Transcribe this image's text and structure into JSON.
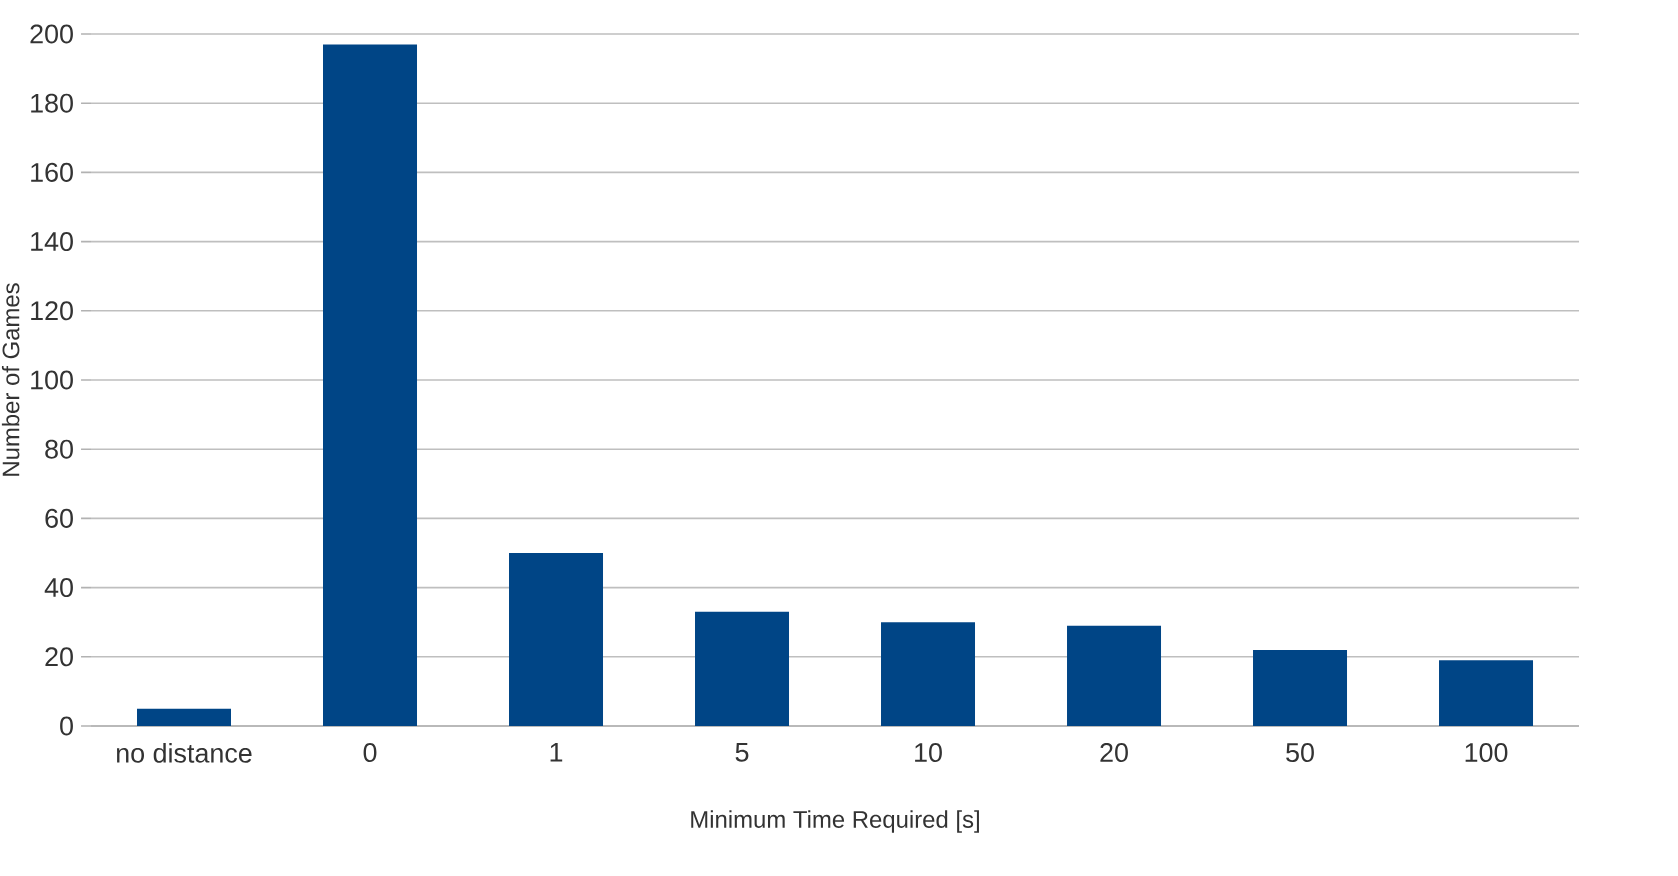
{
  "chart_data": {
    "type": "bar",
    "xlabel": "Minimum Time Required [s]",
    "ylabel": "Number of Games",
    "categories": [
      "no distance",
      "0",
      "1",
      "5",
      "10",
      "20",
      "50",
      "100"
    ],
    "values": [
      5,
      197,
      50,
      33,
      30,
      29,
      22,
      19
    ],
    "color": "#004586",
    "ylim": [
      0,
      200
    ],
    "yticks": [
      0,
      20,
      40,
      60,
      80,
      100,
      120,
      140,
      160,
      180,
      200
    ],
    "grid": "y"
  }
}
